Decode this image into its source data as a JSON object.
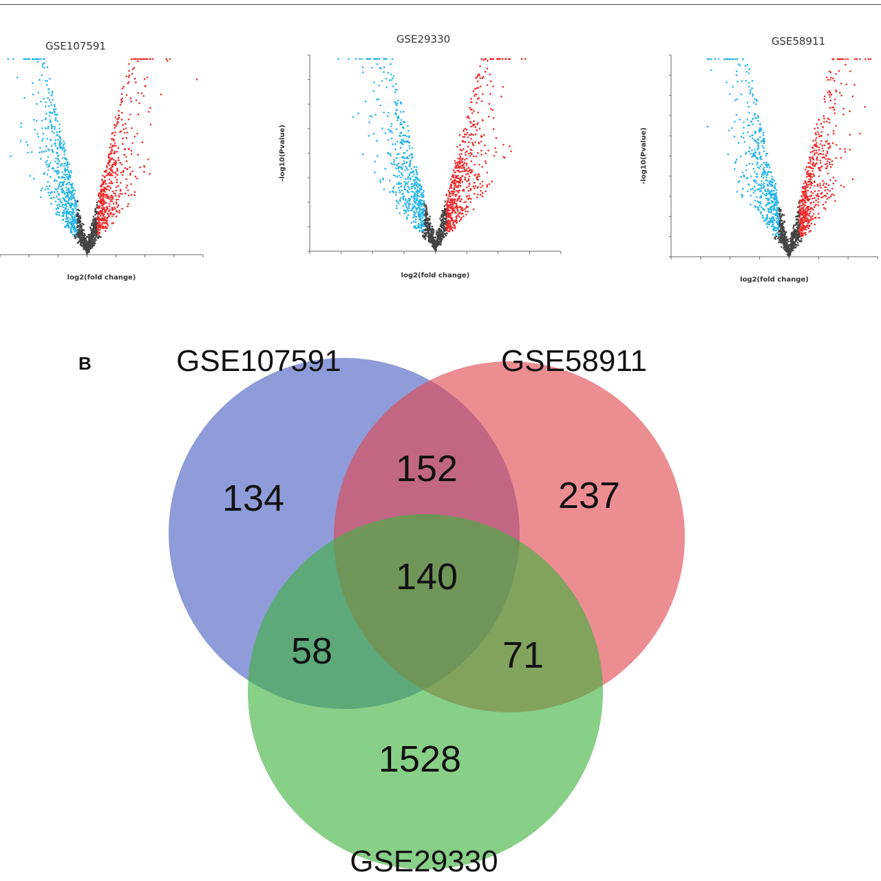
{
  "chart_data": [
    {
      "type": "scatter",
      "subtype": "volcano",
      "title": "GSE107591",
      "xlabel": "log2(fold change)",
      "ylabel": "",
      "xlim": [
        -3,
        4
      ],
      "ylim": [
        0,
        6
      ],
      "color_down": "#29b6e8",
      "color_up": "#ee2b2b",
      "color_ns": "#444444",
      "spread": 1.0
    },
    {
      "type": "scatter",
      "subtype": "volcano",
      "title": "GSE29330",
      "xlabel": "log2(fold change)",
      "ylabel": "-log10(Pvalue)",
      "xlim": [
        -4,
        4
      ],
      "ylim": [
        0,
        8
      ],
      "color_down": "#29b6e8",
      "color_up": "#ee2b2b",
      "color_ns": "#444444",
      "spread": 1.0
    },
    {
      "type": "scatter",
      "subtype": "volcano",
      "title": "GSE58911",
      "xlabel": "log2(fold change)",
      "ylabel": "-log10(Pvalue)",
      "xlim": [
        -4,
        3
      ],
      "ylim": [
        0,
        10
      ],
      "color_down": "#29b6e8",
      "color_up": "#ee2b2b",
      "color_ns": "#444444",
      "spread": 1.0
    },
    {
      "type": "venn",
      "panel_label": "B",
      "sets": [
        {
          "name": "GSE107591",
          "color": "#4a5fc1"
        },
        {
          "name": "GSE58911",
          "color": "#e0474f"
        },
        {
          "name": "GSE29330",
          "color": "#3fb23f"
        }
      ],
      "regions": {
        "GSE107591_only": 134,
        "GSE58911_only": 237,
        "GSE29330_only": 1528,
        "GSE107591_GSE58911": 152,
        "GSE107591_GSE29330": 58,
        "GSE58911_GSE29330": 71,
        "all_three": 140
      }
    }
  ]
}
